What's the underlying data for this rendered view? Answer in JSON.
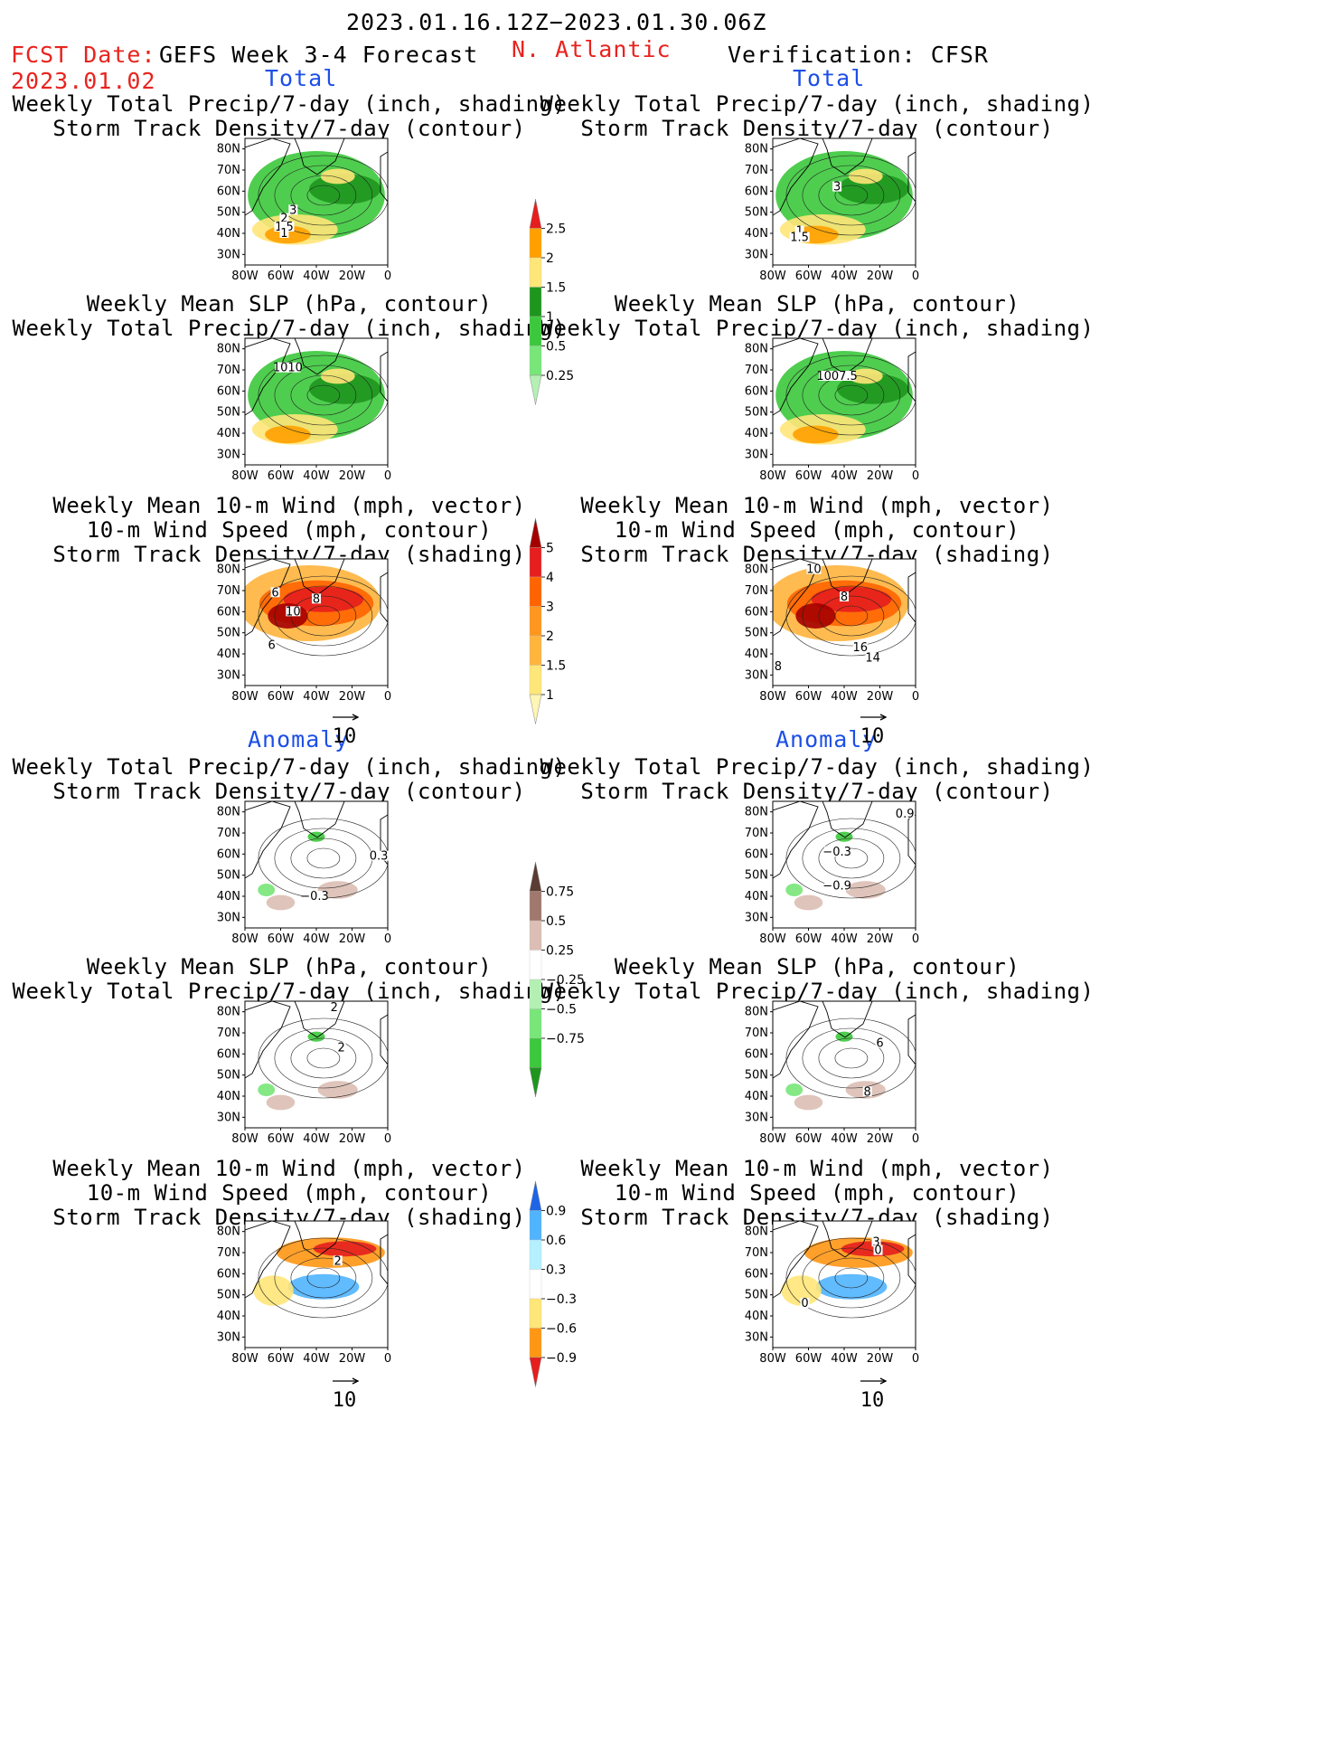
{
  "header": {
    "period": "2023.01.16.12Z−2023.01.30.06Z",
    "fcst_label": "FCST Date:",
    "fcst_date": "2023.01.02",
    "model": "GEFS Week 3-4 Forecast",
    "region": "N. Atlantic",
    "verification": "Verification: CFSR"
  },
  "sections": {
    "total": "Total",
    "anomaly": "Anomaly"
  },
  "titles": {
    "precip_storm": [
      "Weekly Total Precip/7-day (inch, shading)",
      "Storm Track Density/7-day (contour)"
    ],
    "slp_precip": [
      "Weekly Mean SLP (hPa, contour)",
      "Weekly Total Precip/7-day (inch, shading)"
    ],
    "wind": [
      "Weekly Mean 10-m Wind (mph, vector)",
      "10-m Wind Speed (mph, contour)",
      "Storm Track Density/7-day (shading)"
    ]
  },
  "reference_vector": "10",
  "chart_data": [
    {
      "type": "heatmap",
      "region": "left",
      "section": "total",
      "variable": "precip_storm",
      "colorbar": "precip_total",
      "xticks": [
        "80W",
        "60W",
        "40W",
        "20W",
        "0"
      ],
      "yticks": [
        "80N",
        "70N",
        "60N",
        "50N",
        "40N",
        "30N"
      ],
      "xlim": [
        -80,
        0
      ],
      "ylim": [
        25,
        85
      ],
      "contour_labels": [
        {
          "text": "3",
          "lon": -53,
          "lat": 51
        },
        {
          "text": "2",
          "lon": -58,
          "lat": 47
        },
        {
          "text": "1.5",
          "lon": -58,
          "lat": 43
        },
        {
          "text": "1",
          "lon": -58,
          "lat": 40
        }
      ]
    },
    {
      "type": "heatmap",
      "region": "right",
      "section": "total",
      "variable": "precip_storm",
      "colorbar": "precip_total",
      "xticks": [
        "80W",
        "60W",
        "40W",
        "20W",
        "0"
      ],
      "yticks": [
        "80N",
        "70N",
        "60N",
        "50N",
        "40N",
        "30N"
      ],
      "xlim": [
        -80,
        0
      ],
      "ylim": [
        25,
        85
      ],
      "contour_labels": [
        {
          "text": "3",
          "lon": -44,
          "lat": 62
        },
        {
          "text": "1",
          "lon": -65,
          "lat": 41
        },
        {
          "text": "1.5",
          "lon": -65,
          "lat": 38
        }
      ]
    },
    {
      "type": "heatmap",
      "region": "left",
      "section": "total",
      "variable": "slp_precip",
      "colorbar": "precip_total",
      "xticks": [
        "80W",
        "60W",
        "40W",
        "20W",
        "0"
      ],
      "yticks": [
        "80N",
        "70N",
        "60N",
        "50N",
        "40N",
        "30N"
      ],
      "xlim": [
        -80,
        0
      ],
      "ylim": [
        25,
        85
      ],
      "contour_labels": [
        {
          "text": "1010",
          "lon": -56,
          "lat": 71
        }
      ]
    },
    {
      "type": "heatmap",
      "region": "right",
      "section": "total",
      "variable": "slp_precip",
      "colorbar": "precip_total",
      "xticks": [
        "80W",
        "60W",
        "40W",
        "20W",
        "0"
      ],
      "yticks": [
        "80N",
        "70N",
        "60N",
        "50N",
        "40N",
        "30N"
      ],
      "xlim": [
        -80,
        0
      ],
      "ylim": [
        25,
        85
      ],
      "contour_labels": [
        {
          "text": "1007.5",
          "lon": -44,
          "lat": 67
        }
      ]
    },
    {
      "type": "heatmap",
      "region": "left",
      "section": "total",
      "variable": "wind",
      "colorbar": "storm_total",
      "xticks": [
        "80W",
        "60W",
        "40W",
        "20W",
        "0"
      ],
      "yticks": [
        "80N",
        "70N",
        "60N",
        "50N",
        "40N",
        "30N"
      ],
      "xlim": [
        -80,
        0
      ],
      "ylim": [
        25,
        85
      ],
      "contour_labels": [
        {
          "text": "6",
          "lon": -63,
          "lat": 69
        },
        {
          "text": "8",
          "lon": -40,
          "lat": 66
        },
        {
          "text": "10",
          "lon": -53,
          "lat": 60
        },
        {
          "text": "6",
          "lon": -65,
          "lat": 44
        }
      ]
    },
    {
      "type": "heatmap",
      "region": "right",
      "section": "total",
      "variable": "wind",
      "colorbar": "storm_total",
      "xticks": [
        "80W",
        "60W",
        "40W",
        "20W",
        "0"
      ],
      "yticks": [
        "80N",
        "70N",
        "60N",
        "50N",
        "40N",
        "30N"
      ],
      "xlim": [
        -80,
        0
      ],
      "ylim": [
        25,
        85
      ],
      "contour_labels": [
        {
          "text": "10",
          "lon": -57,
          "lat": 80
        },
        {
          "text": "8",
          "lon": -40,
          "lat": 67
        },
        {
          "text": "16",
          "lon": -31,
          "lat": 43
        },
        {
          "text": "14",
          "lon": -24,
          "lat": 38
        },
        {
          "text": "8",
          "lon": -77,
          "lat": 34
        }
      ]
    },
    {
      "type": "heatmap",
      "region": "left",
      "section": "anomaly",
      "variable": "precip_storm",
      "colorbar": "precip_anom",
      "xticks": [
        "80W",
        "60W",
        "40W",
        "20W",
        "0"
      ],
      "yticks": [
        "80N",
        "70N",
        "60N",
        "50N",
        "40N",
        "30N"
      ],
      "xlim": [
        -80,
        0
      ],
      "ylim": [
        25,
        85
      ],
      "contour_labels": [
        {
          "text": "0.3",
          "lon": -5,
          "lat": 59
        },
        {
          "text": "−0.3",
          "lon": -41,
          "lat": 40
        }
      ]
    },
    {
      "type": "heatmap",
      "region": "right",
      "section": "anomaly",
      "variable": "precip_storm",
      "colorbar": "precip_anom",
      "xticks": [
        "80W",
        "60W",
        "40W",
        "20W",
        "0"
      ],
      "yticks": [
        "80N",
        "70N",
        "60N",
        "50N",
        "40N",
        "30N"
      ],
      "xlim": [
        -80,
        0
      ],
      "ylim": [
        25,
        85
      ],
      "contour_labels": [
        {
          "text": "0.9",
          "lon": -6,
          "lat": 79
        },
        {
          "text": "−0.3",
          "lon": -44,
          "lat": 61
        },
        {
          "text": "−0.9",
          "lon": -44,
          "lat": 45
        }
      ]
    },
    {
      "type": "heatmap",
      "region": "left",
      "section": "anomaly",
      "variable": "slp_precip",
      "colorbar": "precip_anom",
      "xticks": [
        "80W",
        "60W",
        "40W",
        "20W",
        "0"
      ],
      "yticks": [
        "80N",
        "70N",
        "60N",
        "50N",
        "40N",
        "30N"
      ],
      "xlim": [
        -80,
        0
      ],
      "ylim": [
        25,
        85
      ],
      "contour_labels": [
        {
          "text": "2",
          "lon": -30,
          "lat": 82
        },
        {
          "text": "2",
          "lon": -26,
          "lat": 63
        }
      ]
    },
    {
      "type": "heatmap",
      "region": "right",
      "section": "anomaly",
      "variable": "slp_precip",
      "colorbar": "precip_anom",
      "xticks": [
        "80W",
        "60W",
        "40W",
        "20W",
        "0"
      ],
      "yticks": [
        "80N",
        "70N",
        "60N",
        "50N",
        "40N",
        "30N"
      ],
      "xlim": [
        -80,
        0
      ],
      "ylim": [
        25,
        85
      ],
      "contour_labels": [
        {
          "text": "6",
          "lon": -20,
          "lat": 65
        },
        {
          "text": "8",
          "lon": -27,
          "lat": 42
        }
      ]
    },
    {
      "type": "heatmap",
      "region": "left",
      "section": "anomaly",
      "variable": "wind",
      "colorbar": "storm_anom",
      "xticks": [
        "80W",
        "60W",
        "40W",
        "20W",
        "0"
      ],
      "yticks": [
        "80N",
        "70N",
        "60N",
        "50N",
        "40N",
        "30N"
      ],
      "xlim": [
        -80,
        0
      ],
      "ylim": [
        25,
        85
      ],
      "contour_labels": [
        {
          "text": "2",
          "lon": -28,
          "lat": 66
        }
      ]
    },
    {
      "type": "heatmap",
      "region": "right",
      "section": "anomaly",
      "variable": "wind",
      "colorbar": "storm_anom",
      "xticks": [
        "80W",
        "60W",
        "40W",
        "20W",
        "0"
      ],
      "yticks": [
        "80N",
        "70N",
        "60N",
        "50N",
        "40N",
        "30N"
      ],
      "xlim": [
        -80,
        0
      ],
      "ylim": [
        25,
        85
      ],
      "contour_labels": [
        {
          "text": "3",
          "lon": -22,
          "lat": 75
        },
        {
          "text": "0",
          "lon": -21,
          "lat": 71
        },
        {
          "text": "0",
          "lon": -62,
          "lat": 46
        }
      ]
    }
  ],
  "colorbars": {
    "precip_total": {
      "labels": [
        "0.25",
        "0.5",
        "1",
        "1.5",
        "2",
        "2.5"
      ],
      "colors": [
        "#b4f0b4",
        "#78e678",
        "#3cc83c",
        "#1e961e",
        "#ffe678",
        "#ffa000",
        "#e61e1e"
      ]
    },
    "storm_total": {
      "labels": [
        "1",
        "1.5",
        "2",
        "3",
        "4",
        "5"
      ],
      "colors": [
        "#fff5b4",
        "#ffe678",
        "#ffb43c",
        "#ff961e",
        "#ff6400",
        "#e61e1e",
        "#a50000"
      ]
    },
    "precip_anom": {
      "labels": [
        "0.75",
        "0.5",
        "0.25",
        "−0.25",
        "−0.5",
        "−0.75"
      ],
      "colors": [
        "#1e961e",
        "#3cc83c",
        "#78e678",
        "#b4f0b4",
        "#ffffff",
        "#dcbeb4",
        "#a0786e",
        "#5a3c32"
      ]
    },
    "storm_anom": {
      "labels": [
        "0.9",
        "0.6",
        "0.3",
        "−0.3",
        "−0.6",
        "−0.9"
      ],
      "colors": [
        "#e61e1e",
        "#ff9614",
        "#ffe678",
        "#ffffff",
        "#b4f0ff",
        "#50b4ff",
        "#1e64e6"
      ]
    }
  }
}
